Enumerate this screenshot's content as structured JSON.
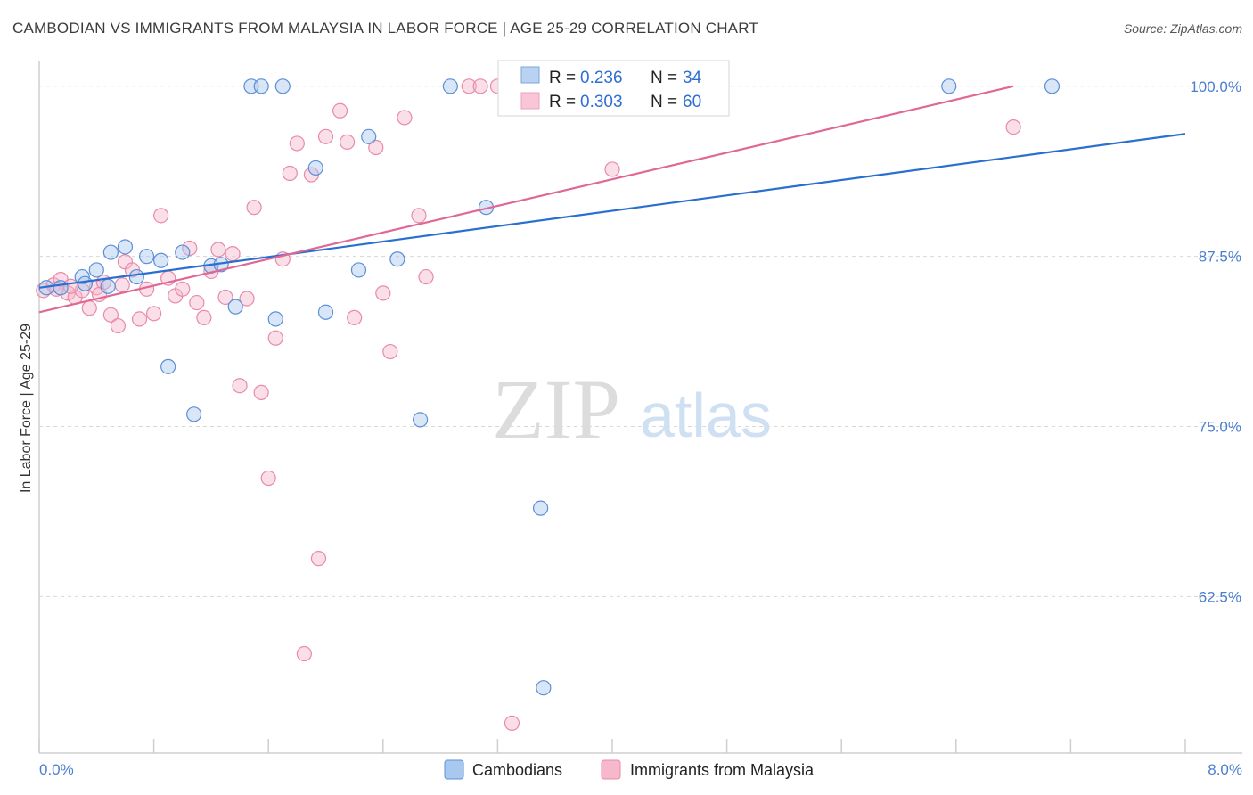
{
  "title": "CAMBODIAN VS IMMIGRANTS FROM MALAYSIA IN LABOR FORCE | AGE 25-29 CORRELATION CHART",
  "source": "Source: ZipAtlas.com",
  "watermark": {
    "zip": "ZIP",
    "atlas": "atlas"
  },
  "colors": {
    "cambodians_fill": "#a8c8f0",
    "cambodians_stroke": "#5b8fd6",
    "cambodians_line": "#2a6fcf",
    "malaysia_fill": "#f7b8cc",
    "malaysia_stroke": "#e88aa8",
    "malaysia_line": "#e06896",
    "tick_label": "#4a7fd0",
    "grid": "#d8d8d8"
  },
  "legend": {
    "rows": [
      {
        "r_label": "R =",
        "r_value": "0.236",
        "n_label": "N =",
        "n_value": "34"
      },
      {
        "r_label": "R =",
        "r_value": "0.303",
        "n_label": "N =",
        "n_value": "60"
      }
    ]
  },
  "bottom_legend": [
    "Cambodians",
    "Immigrants from Malaysia"
  ],
  "chart_data": {
    "type": "scatter",
    "title": "CAMBODIAN VS IMMIGRANTS FROM MALAYSIA IN LABOR FORCE | AGE 25-29 CORRELATION CHART",
    "xlabel": "",
    "ylabel": "In Labor Force | Age 25-29",
    "xlim": [
      0,
      8
    ],
    "ylim": [
      51,
      101.1
    ],
    "x_tick_labels": [
      "0.0%",
      "8.0%"
    ],
    "y_ticks": [
      62.5,
      75.0,
      87.5,
      100.0
    ],
    "y_tick_labels": [
      "62.5%",
      "75.0%",
      "87.5%",
      "100.0%"
    ],
    "grid": true,
    "series": [
      {
        "name": "Cambodians",
        "trend": {
          "x": [
            0.0,
            8.0
          ],
          "y": [
            85.2,
            96.5
          ]
        },
        "points": [
          [
            0.05,
            85.2
          ],
          [
            0.15,
            85.2
          ],
          [
            0.3,
            86.0
          ],
          [
            0.32,
            85.5
          ],
          [
            0.4,
            86.5
          ],
          [
            0.48,
            85.3
          ],
          [
            0.5,
            87.8
          ],
          [
            0.6,
            88.2
          ],
          [
            0.68,
            86.0
          ],
          [
            0.75,
            87.5
          ],
          [
            0.85,
            87.2
          ],
          [
            0.9,
            79.4
          ],
          [
            1.0,
            87.8
          ],
          [
            1.08,
            75.9
          ],
          [
            1.2,
            86.8
          ],
          [
            1.27,
            86.9
          ],
          [
            1.37,
            83.8
          ],
          [
            1.48,
            100.0
          ],
          [
            1.55,
            100.0
          ],
          [
            1.65,
            82.9
          ],
          [
            1.7,
            100.0
          ],
          [
            1.93,
            94.0
          ],
          [
            2.0,
            83.4
          ],
          [
            2.23,
            86.5
          ],
          [
            2.3,
            96.3
          ],
          [
            2.5,
            87.3
          ],
          [
            2.66,
            75.5
          ],
          [
            2.87,
            100.0
          ],
          [
            3.12,
            91.1
          ],
          [
            3.36,
            100.0
          ],
          [
            3.5,
            69.0
          ],
          [
            3.52,
            55.8
          ],
          [
            6.35,
            100.0
          ],
          [
            7.07,
            100.0
          ]
        ]
      },
      {
        "name": "Immigrants from Malaysia",
        "trend": {
          "x": [
            0.0,
            6.8
          ],
          "y": [
            83.4,
            100.0
          ]
        },
        "points": [
          [
            0.03,
            85.0
          ],
          [
            0.1,
            85.4
          ],
          [
            0.15,
            85.8
          ],
          [
            0.2,
            84.8
          ],
          [
            0.25,
            84.5
          ],
          [
            0.3,
            85.0
          ],
          [
            0.35,
            83.7
          ],
          [
            0.4,
            85.2
          ],
          [
            0.45,
            85.6
          ],
          [
            0.5,
            83.2
          ],
          [
            0.55,
            82.4
          ],
          [
            0.6,
            87.1
          ],
          [
            0.65,
            86.5
          ],
          [
            0.7,
            82.9
          ],
          [
            0.75,
            85.1
          ],
          [
            0.8,
            83.3
          ],
          [
            0.85,
            90.5
          ],
          [
            0.9,
            85.9
          ],
          [
            0.95,
            84.6
          ],
          [
            1.0,
            85.1
          ],
          [
            1.05,
            88.1
          ],
          [
            1.1,
            84.1
          ],
          [
            1.15,
            83.0
          ],
          [
            1.2,
            86.4
          ],
          [
            1.25,
            88.0
          ],
          [
            1.3,
            84.5
          ],
          [
            1.35,
            87.7
          ],
          [
            1.4,
            78.0
          ],
          [
            1.45,
            84.4
          ],
          [
            1.5,
            91.1
          ],
          [
            1.55,
            77.5
          ],
          [
            1.6,
            71.2
          ],
          [
            1.65,
            81.5
          ],
          [
            1.7,
            87.3
          ],
          [
            1.75,
            93.6
          ],
          [
            1.8,
            95.8
          ],
          [
            1.85,
            58.3
          ],
          [
            1.9,
            93.5
          ],
          [
            1.95,
            65.3
          ],
          [
            2.0,
            96.3
          ],
          [
            2.1,
            98.2
          ],
          [
            2.15,
            95.9
          ],
          [
            2.2,
            83.0
          ],
          [
            2.35,
            95.5
          ],
          [
            2.4,
            84.8
          ],
          [
            2.45,
            80.5
          ],
          [
            2.55,
            97.7
          ],
          [
            2.65,
            90.5
          ],
          [
            2.7,
            86.0
          ],
          [
            3.0,
            100.0
          ],
          [
            3.08,
            100.0
          ],
          [
            3.2,
            100.0
          ],
          [
            3.3,
            53.2
          ],
          [
            4.0,
            93.9
          ],
          [
            4.5,
            100.0
          ],
          [
            6.8,
            97.0
          ],
          [
            0.12,
            85.1
          ],
          [
            0.22,
            85.3
          ],
          [
            0.58,
            85.4
          ],
          [
            0.42,
            84.7
          ]
        ]
      }
    ]
  }
}
